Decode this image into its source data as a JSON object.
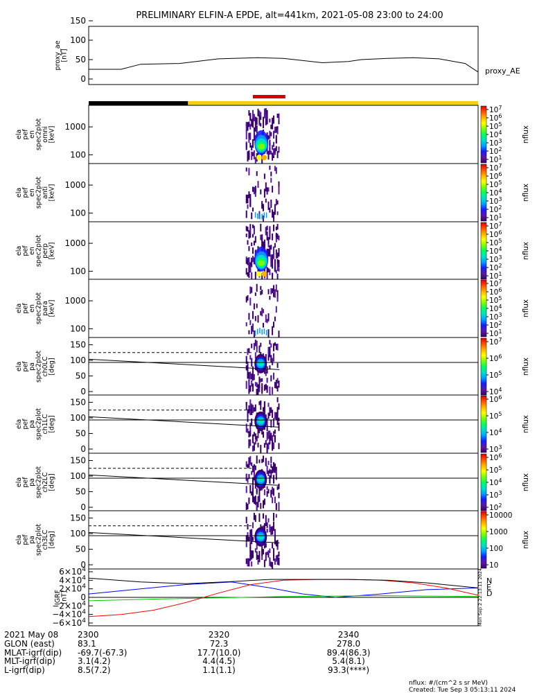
{
  "title": "PRELIMINARY ELFIN-A EPDE, alt=441km, 2021-05-08 23:00 to 24:00",
  "chart_data": [
    {
      "type": "line",
      "id": "proxy_ae",
      "ylabel_lines": [
        "proxy_ae",
        "[nT]"
      ],
      "yticks": [
        "150",
        "100",
        "50",
        "0"
      ],
      "ylim": [
        0,
        150
      ],
      "legend": "proxy_AE",
      "x_minutes": [
        0,
        5,
        8,
        14,
        20,
        26,
        30,
        36,
        40,
        42,
        46,
        50,
        54,
        58,
        60
      ],
      "values": [
        25,
        25,
        38,
        40,
        52,
        55,
        53,
        42,
        45,
        50,
        53,
        55,
        52,
        40,
        18
      ]
    },
    {
      "type": "bar",
      "id": "status_bar",
      "segments": [
        {
          "from": 0,
          "to": 15.3,
          "color": "#000000"
        },
        {
          "from": 15.3,
          "to": 60,
          "color": "#f2d20b"
        }
      ],
      "science_zone": {
        "from": 25.3,
        "to": 30.3,
        "color": "#d40000"
      }
    },
    {
      "type": "heatmap",
      "id": "en_omni",
      "ylabel_lines": [
        "ela",
        "pef",
        "en",
        "spec2plot",
        "omni",
        "[keV]"
      ],
      "yticks": [
        "1000",
        "100"
      ],
      "scale": "log",
      "cbar": "nflux",
      "cbar_ticks": [
        "10^7",
        "10^6",
        "10^5",
        "10^4",
        "10^3",
        "10^2",
        "10^1"
      ]
    },
    {
      "type": "heatmap",
      "id": "en_anti",
      "ylabel_lines": [
        "ela",
        "pef",
        "en",
        "spec2plot",
        "anti",
        "[keV]"
      ],
      "yticks": [
        "1000",
        "100"
      ],
      "scale": "log",
      "cbar": "nflux",
      "cbar_ticks": [
        "10^7",
        "10^6",
        "10^5",
        "10^4",
        "10^3",
        "10^2",
        "10^1"
      ]
    },
    {
      "type": "heatmap",
      "id": "en_perp",
      "ylabel_lines": [
        "ela",
        "pef",
        "en",
        "spec2plot",
        "perp",
        "[keV]"
      ],
      "yticks": [
        "1000",
        "100"
      ],
      "scale": "log",
      "cbar": "nflux",
      "cbar_ticks": [
        "10^7",
        "10^6",
        "10^5",
        "10^4",
        "10^3",
        "10^2",
        "10^1"
      ]
    },
    {
      "type": "heatmap",
      "id": "en_para",
      "ylabel_lines": [
        "ela",
        "pef",
        "en",
        "spec2plot",
        "para",
        "[keV]"
      ],
      "yticks": [
        "1000",
        "100"
      ],
      "scale": "log",
      "cbar": "nflux",
      "cbar_ticks": [
        "10^7",
        "10^6",
        "10^5",
        "10^4",
        "10^3",
        "10^2",
        "10^1"
      ]
    },
    {
      "type": "heatmap",
      "id": "pa_ch0",
      "ylabel_lines": [
        "ela",
        "pef",
        "pa",
        "spec2plot",
        "ch0LC",
        "[deg]"
      ],
      "yticks": [
        "150",
        "100",
        "50",
        "0"
      ],
      "ylim": [
        0,
        180
      ],
      "cbar": "nflux",
      "cbar_ticks": [
        "10^7",
        "10^6",
        "10^5",
        "10^4"
      ]
    },
    {
      "type": "heatmap",
      "id": "pa_ch1",
      "ylabel_lines": [
        "ela",
        "pef",
        "pa",
        "spec2plot",
        "ch1LC",
        "[deg]"
      ],
      "yticks": [
        "150",
        "100",
        "50",
        "0"
      ],
      "ylim": [
        0,
        180
      ],
      "cbar": "nflux",
      "cbar_ticks": [
        "10^6",
        "10^5",
        "10^4",
        "10^3"
      ]
    },
    {
      "type": "heatmap",
      "id": "pa_ch2",
      "ylabel_lines": [
        "ela",
        "pef",
        "pa",
        "spec2plot",
        "ch2LC",
        "[deg]"
      ],
      "yticks": [
        "150",
        "100",
        "50",
        "0"
      ],
      "ylim": [
        0,
        180
      ],
      "cbar": "nflux",
      "cbar_ticks": [
        "10^6",
        "10^5",
        "10^4",
        "10^3",
        "10^2"
      ]
    },
    {
      "type": "heatmap",
      "id": "pa_ch3",
      "ylabel_lines": [
        "ela",
        "pef",
        "pa",
        "spec2plot",
        "ch3LC",
        "[deg]"
      ],
      "yticks": [
        "150",
        "100",
        "50",
        "0"
      ],
      "ylim": [
        0,
        180
      ],
      "cbar": "nflux",
      "cbar_ticks": [
        "10000",
        "1000",
        "100",
        "10"
      ]
    },
    {
      "type": "line",
      "id": "igrf",
      "ylabel_lines": [
        "IGRF",
        "[nT]"
      ],
      "yticks": [
        "6×10^4",
        "4×10^4",
        "2×10^4",
        "0",
        "−2×10^4",
        "−4×10^4",
        "−6×10^4"
      ],
      "ylim": [
        -60000,
        60000
      ],
      "legend": [
        "N",
        "E",
        "D"
      ],
      "legend_colors": [
        "#0000ff",
        "#00cc00",
        "#ff0000"
      ],
      "series": [
        {
          "name": "N",
          "color": "#0000ff",
          "x_minutes": [
            0,
            8,
            15,
            22,
            28,
            33,
            38,
            45,
            52,
            60
          ],
          "values": [
            8000,
            20000,
            30000,
            36000,
            22000,
            8000,
            0,
            8000,
            18000,
            22000
          ]
        },
        {
          "name": "E",
          "color": "#00cc00",
          "x_minutes": [
            0,
            10,
            20,
            30,
            38,
            45,
            52,
            60
          ],
          "values": [
            -8000,
            -4000,
            -1000,
            2000,
            3000,
            4000,
            3000,
            2000
          ]
        },
        {
          "name": "D",
          "color": "#ff0000",
          "x_minutes": [
            0,
            5,
            10,
            15,
            20,
            25,
            30,
            35,
            40,
            45,
            50,
            55,
            60
          ],
          "values": [
            -45000,
            -40000,
            -30000,
            -12000,
            10000,
            30000,
            40000,
            42000,
            42000,
            40000,
            34000,
            22000,
            5000
          ]
        },
        {
          "name": "total",
          "color": "#000000",
          "x_minutes": [
            0,
            8,
            15,
            22,
            28,
            34,
            40,
            46,
            52,
            60
          ],
          "values": [
            45000,
            36000,
            32000,
            37000,
            42000,
            42000,
            42000,
            40000,
            34000,
            22000
          ]
        }
      ]
    }
  ],
  "igrf_note": "Mon Sep  2 22:13:11 2024",
  "ephemeris": {
    "rows": [
      {
        "label": "2021 May 08",
        "v0": "2300",
        "v1": "2320",
        "v2": "2340"
      },
      {
        "label": "GLON (east)",
        "v0": "83.1",
        "v1": "72.3",
        "v2": "278.0"
      },
      {
        "label": "MLAT-igrf(dip)",
        "v0": "-69.7(-67.3)",
        "v1": "17.7(10.0)",
        "v2": "89.4(86.3)"
      },
      {
        "label": "MLT-igrf(dip)",
        "v0": "3.1(4.2)",
        "v1": "4.4(4.5)",
        "v2": "5.4(8.1)"
      },
      {
        "label": "L-igrf(dip)",
        "v0": "8.5(7.2)",
        "v1": "1.1(1.1)",
        "v2": "93.3(****)"
      }
    ]
  },
  "footer": {
    "units": "nflux: #/(cm^2 s sr MeV)",
    "created": "Created: Tue Sep  3 05:13:11 2024"
  },
  "colors": {
    "background": "#ffffff",
    "axis": "#000000",
    "colormap": [
      "#3a0070",
      "#5a1aa0",
      "#1a1aff",
      "#00a0ff",
      "#00e0c8",
      "#00ff60",
      "#80ff00",
      "#ffff00",
      "#ffb000",
      "#ff5000",
      "#e00000"
    ]
  }
}
